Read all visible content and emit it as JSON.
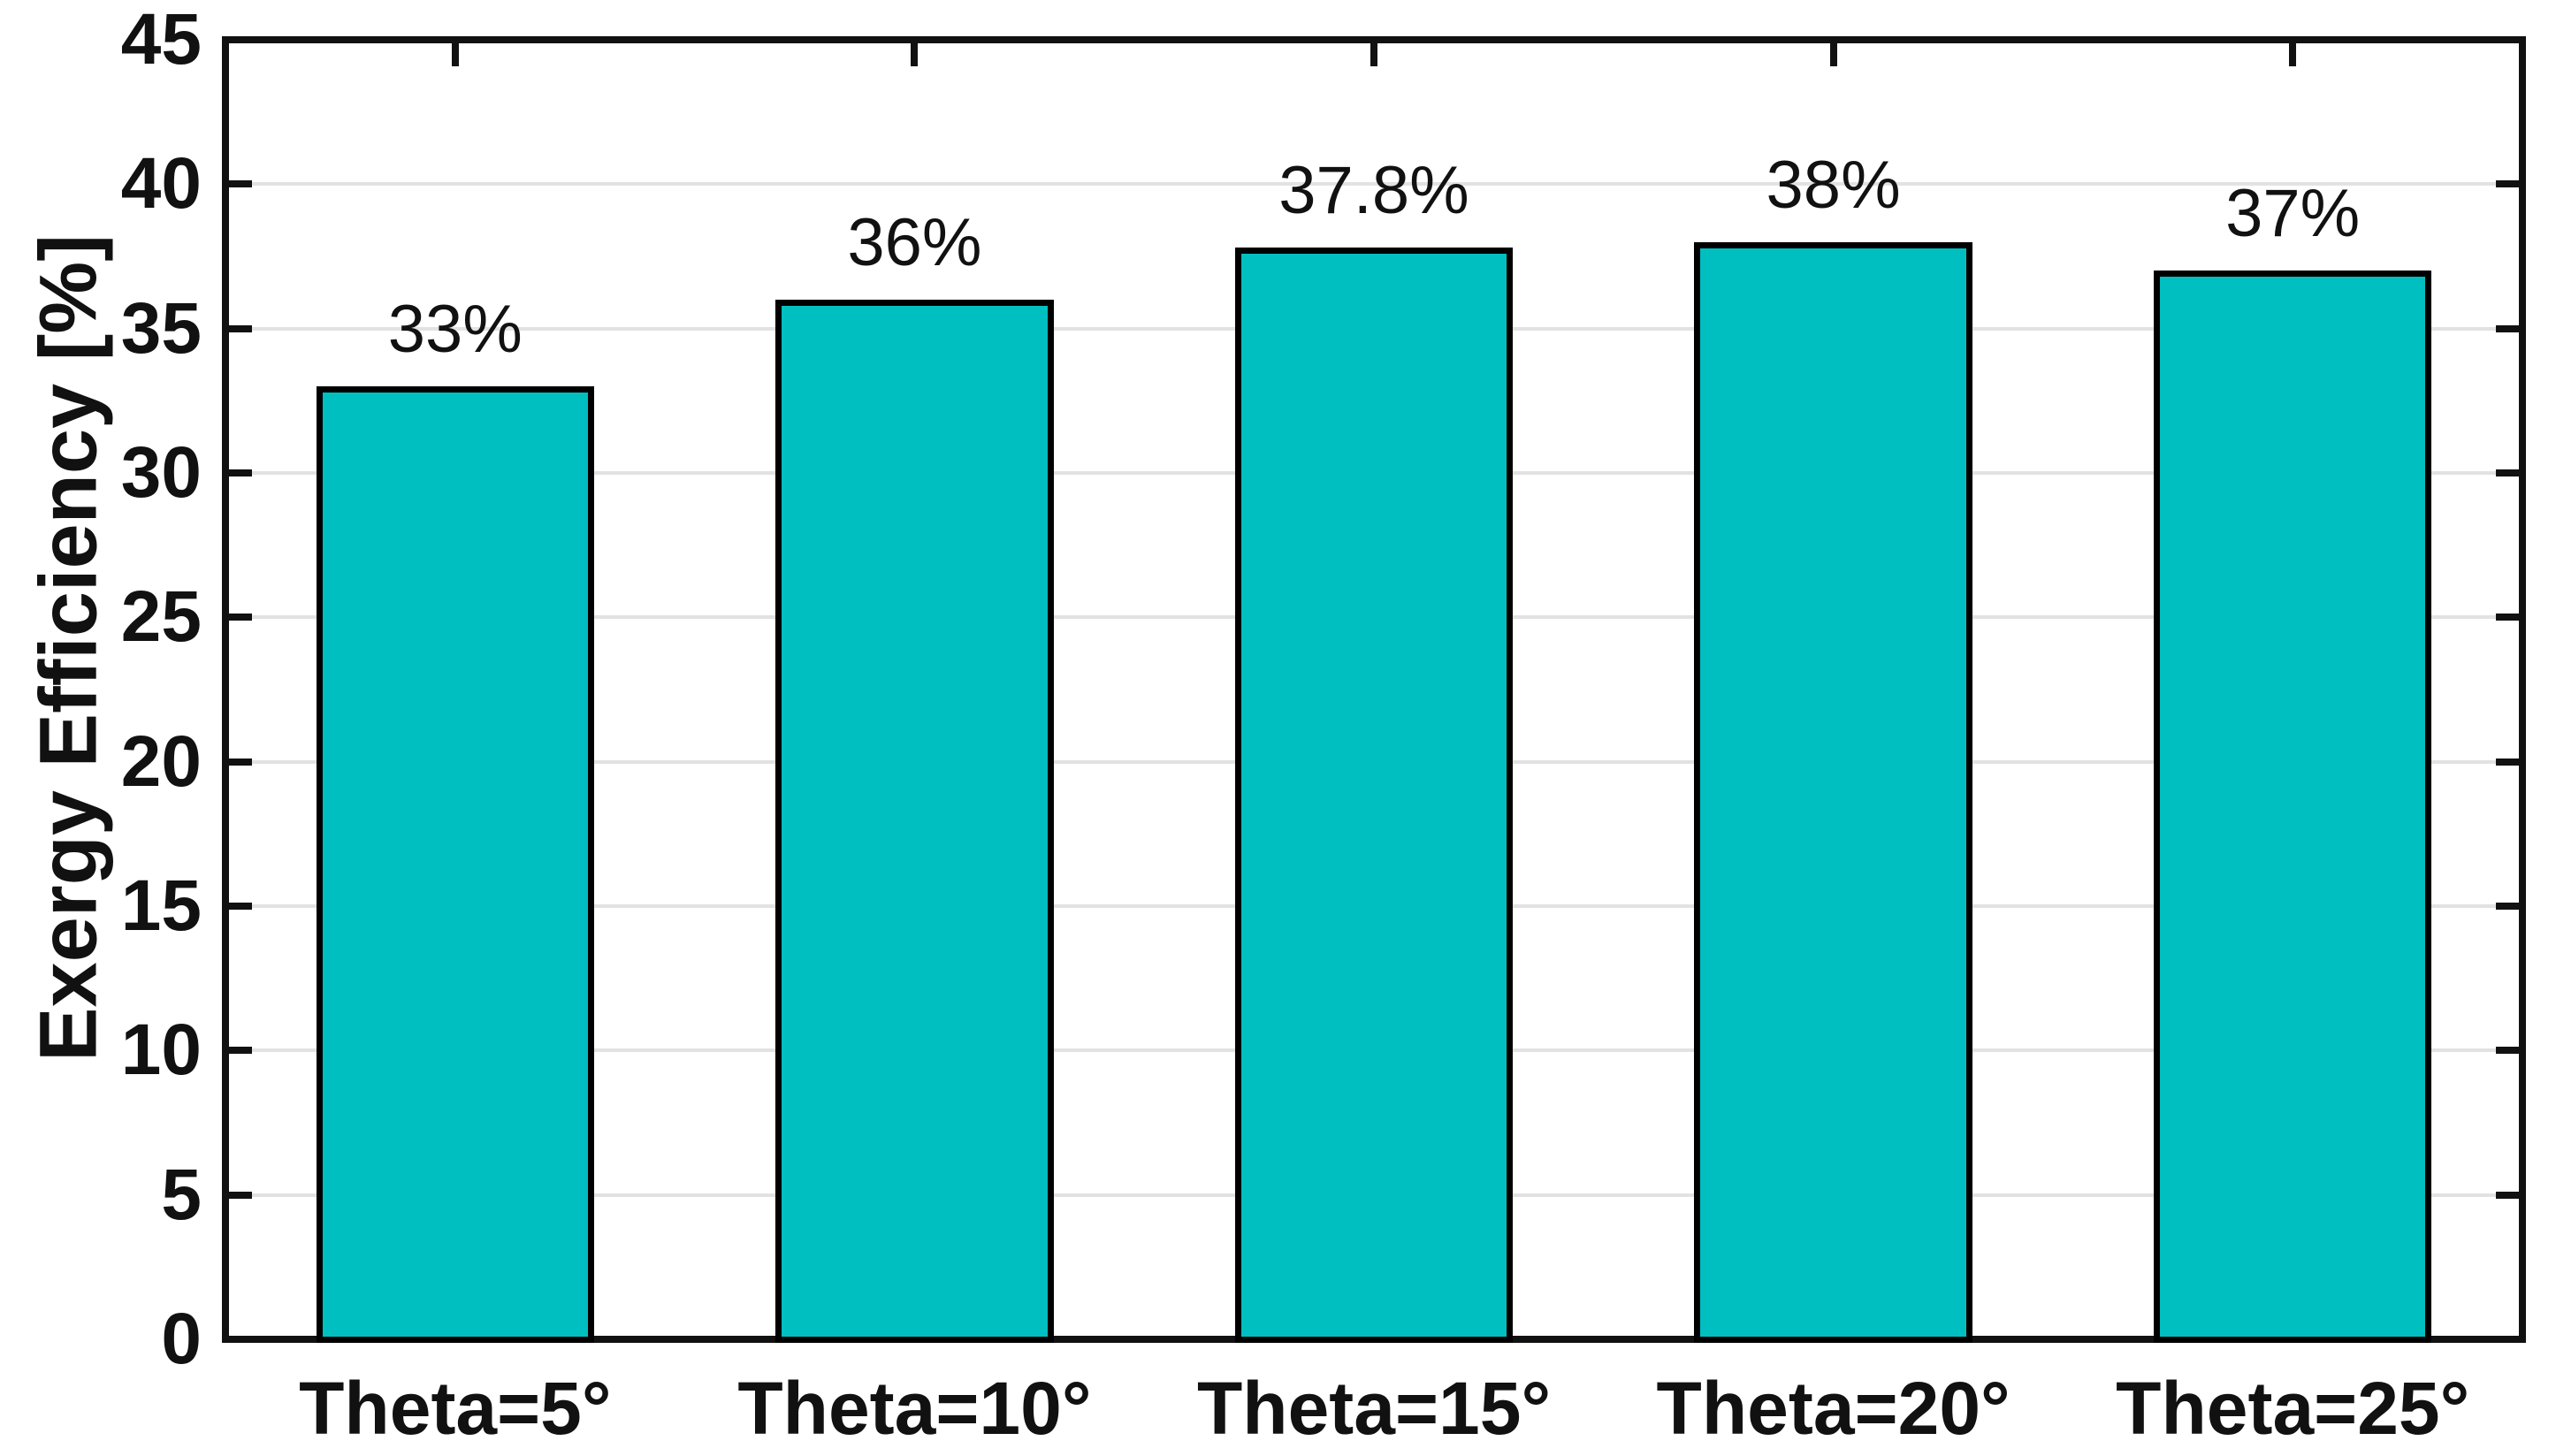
{
  "chart_data": {
    "type": "bar",
    "title": "",
    "categories": [
      "Theta=5°",
      "Theta=10°",
      "Theta=15°",
      "Theta=20°",
      "Theta=25°"
    ],
    "values": [
      33,
      36,
      37.8,
      38,
      37
    ],
    "bar_labels": [
      "33%",
      "36%",
      "37.8%",
      "38%",
      "37%"
    ],
    "xlabel": "",
    "ylabel": "Exergy Efficiency [%]",
    "ylim": [
      0,
      45
    ],
    "yticks": [
      0,
      5,
      10,
      15,
      20,
      25,
      30,
      35,
      40,
      45
    ],
    "grid": "horizontal-gridlines-on",
    "legend": "none",
    "bar_color": "#00BFC1",
    "bar_edge_color": "#000000",
    "grid_color": "#E2E2E2",
    "axis_color": "#111111",
    "background_color": "#FFFFFF"
  }
}
